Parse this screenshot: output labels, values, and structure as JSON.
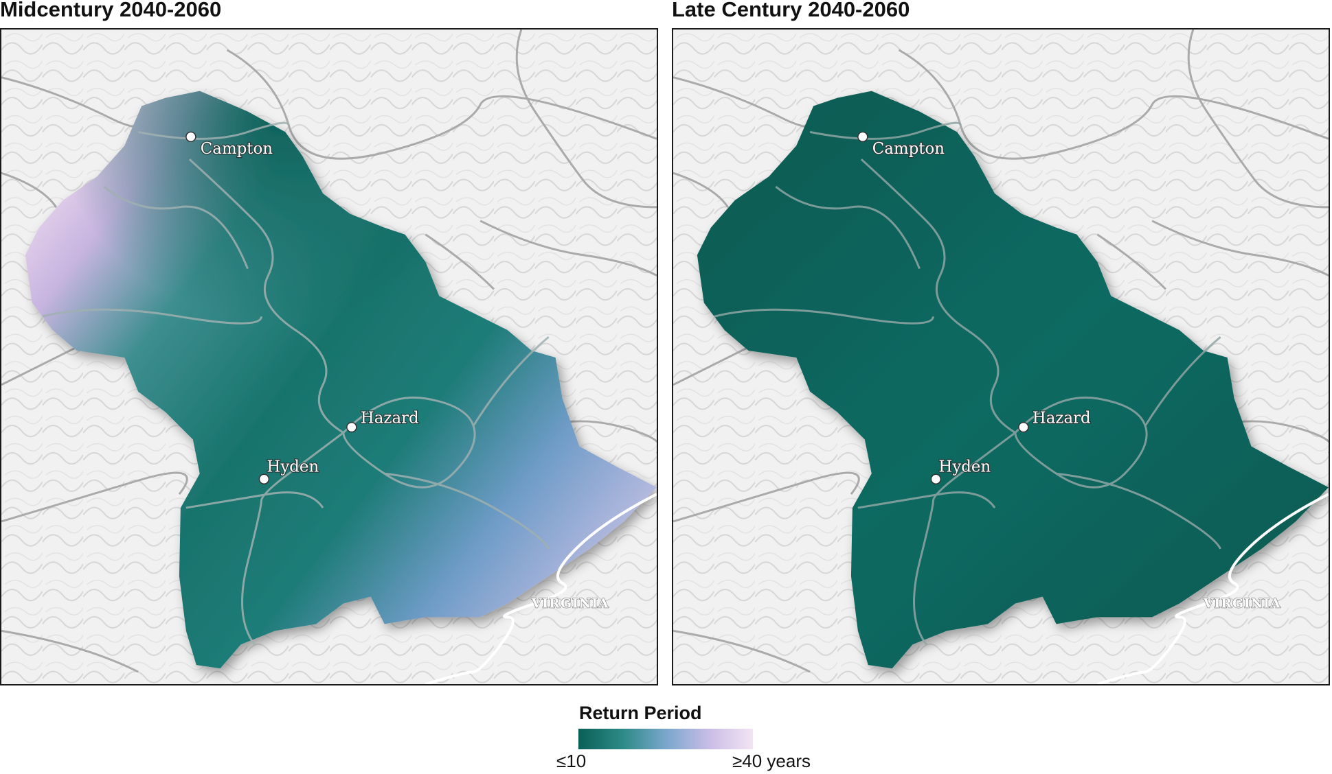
{
  "panels": [
    {
      "title": "Midcentury 2040-2060",
      "scenario": "midcentury"
    },
    {
      "title": "Late Century 2040-2060",
      "scenario": "late"
    }
  ],
  "places": {
    "campton": "Campton",
    "hazard": "Hazard",
    "hyden": "Hyden",
    "virginia": "VIRGINIA"
  },
  "legend": {
    "title": "Return Period",
    "min_label": "≤10",
    "max_label": "≥40 years",
    "colors": [
      "#0b5f57",
      "#2b8a85",
      "#7aa6cc",
      "#c9bde6",
      "#f3e4f3"
    ]
  }
}
